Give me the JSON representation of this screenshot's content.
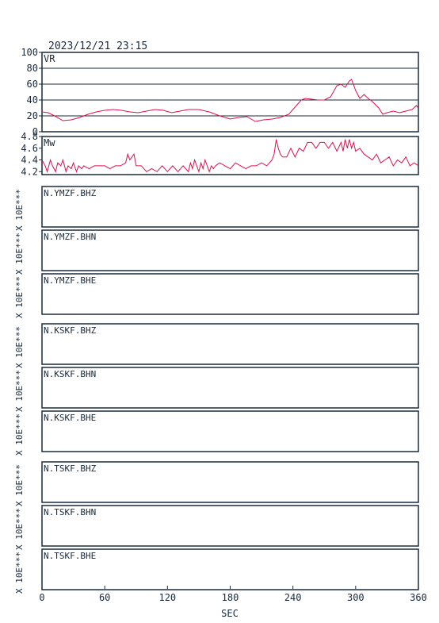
{
  "timestamp": "2023/12/21 23:15",
  "colors": {
    "frame": "#1a2a3a",
    "grid": "#1a2a3a",
    "trace": "#e0104a"
  },
  "x_axis": {
    "label": "SEC",
    "ticks": [
      "0",
      "60",
      "120",
      "180",
      "240",
      "300",
      "360"
    ]
  },
  "chart_data": [
    {
      "type": "line",
      "title": "VR",
      "ylim": [
        0,
        100
      ],
      "yticks": [
        "100",
        "80",
        "60",
        "40",
        "20",
        "0"
      ],
      "grid": true,
      "x": [
        0,
        6,
        12,
        20,
        28,
        36,
        44,
        52,
        60,
        68,
        76,
        84,
        92,
        100,
        108,
        116,
        124,
        132,
        140,
        150,
        160,
        170,
        180,
        188,
        196,
        204,
        212,
        220,
        228,
        236,
        242,
        248,
        252,
        258,
        264,
        270,
        276,
        282,
        286,
        290,
        294,
        296,
        300,
        304,
        308,
        312,
        316,
        322,
        326,
        330,
        336,
        342,
        348,
        354,
        358,
        360
      ],
      "values": [
        25,
        24,
        20,
        14,
        15,
        18,
        22,
        25,
        27,
        28,
        27,
        25,
        24,
        26,
        28,
        27,
        24,
        26,
        28,
        28,
        25,
        20,
        16,
        18,
        19,
        13,
        15,
        16,
        18,
        22,
        31,
        40,
        42,
        41,
        40,
        40,
        44,
        58,
        60,
        56,
        64,
        66,
        52,
        42,
        47,
        42,
        38,
        30,
        22,
        24,
        26,
        24,
        26,
        28,
        33,
        30
      ]
    },
    {
      "type": "line",
      "title": "Mw",
      "ylim": [
        4.15,
        4.8
      ],
      "yticks": [
        "4.8",
        "4.6",
        "4.4",
        "4.2"
      ],
      "grid": false,
      "x": [
        0,
        3,
        5,
        8,
        10,
        13,
        15,
        18,
        20,
        23,
        25,
        28,
        30,
        33,
        35,
        38,
        40,
        45,
        50,
        55,
        60,
        65,
        70,
        75,
        80,
        82,
        84,
        86,
        88,
        90,
        95,
        100,
        105,
        110,
        115,
        120,
        125,
        130,
        135,
        140,
        142,
        144,
        146,
        148,
        150,
        152,
        154,
        156,
        158,
        160,
        162,
        164,
        166,
        170,
        175,
        180,
        185,
        190,
        195,
        200,
        205,
        210,
        215,
        220,
        222,
        224,
        226,
        228,
        230,
        234,
        238,
        242,
        246,
        250,
        254,
        258,
        262,
        266,
        270,
        274,
        278,
        282,
        286,
        288,
        290,
        292,
        294,
        296,
        298,
        300,
        304,
        308,
        312,
        316,
        320,
        324,
        328,
        332,
        336,
        340,
        344,
        348,
        352,
        356,
        360
      ],
      "values": [
        4.4,
        4.3,
        4.2,
        4.4,
        4.3,
        4.2,
        4.35,
        4.3,
        4.4,
        4.2,
        4.3,
        4.25,
        4.35,
        4.2,
        4.3,
        4.25,
        4.3,
        4.25,
        4.3,
        4.3,
        4.3,
        4.25,
        4.3,
        4.3,
        4.35,
        4.5,
        4.4,
        4.45,
        4.5,
        4.3,
        4.3,
        4.2,
        4.25,
        4.2,
        4.3,
        4.2,
        4.3,
        4.2,
        4.3,
        4.2,
        4.35,
        4.25,
        4.4,
        4.3,
        4.2,
        4.35,
        4.25,
        4.4,
        4.3,
        4.2,
        4.3,
        4.25,
        4.3,
        4.35,
        4.3,
        4.25,
        4.35,
        4.3,
        4.25,
        4.3,
        4.3,
        4.35,
        4.3,
        4.4,
        4.5,
        4.75,
        4.6,
        4.5,
        4.45,
        4.45,
        4.6,
        4.45,
        4.6,
        4.55,
        4.7,
        4.7,
        4.6,
        4.7,
        4.7,
        4.6,
        4.7,
        4.55,
        4.7,
        4.55,
        4.75,
        4.6,
        4.75,
        4.6,
        4.7,
        4.55,
        4.6,
        4.5,
        4.45,
        4.4,
        4.5,
        4.35,
        4.4,
        4.45,
        4.3,
        4.4,
        4.35,
        4.45,
        4.3,
        4.35,
        4.3
      ]
    }
  ],
  "station_panels": [
    {
      "label": "N.YMZF.BHZ",
      "scale_label": "X 10E***"
    },
    {
      "label": "N.YMZF.BHN",
      "scale_label": "X 10E***"
    },
    {
      "label": "N.YMZF.BHE",
      "scale_label": "X 10E***"
    },
    {
      "label": "N.KSKF.BHZ",
      "scale_label": "X 10E***"
    },
    {
      "label": "N.KSKF.BHN",
      "scale_label": "X 10E***"
    },
    {
      "label": "N.KSKF.BHE",
      "scale_label": "X 10E***"
    },
    {
      "label": "N.TSKF.BHZ",
      "scale_label": "X 10E***"
    },
    {
      "label": "N.TSKF.BHN",
      "scale_label": "X 10E***"
    },
    {
      "label": "N.TSKF.BHE",
      "scale_label": "X 10E***"
    }
  ]
}
